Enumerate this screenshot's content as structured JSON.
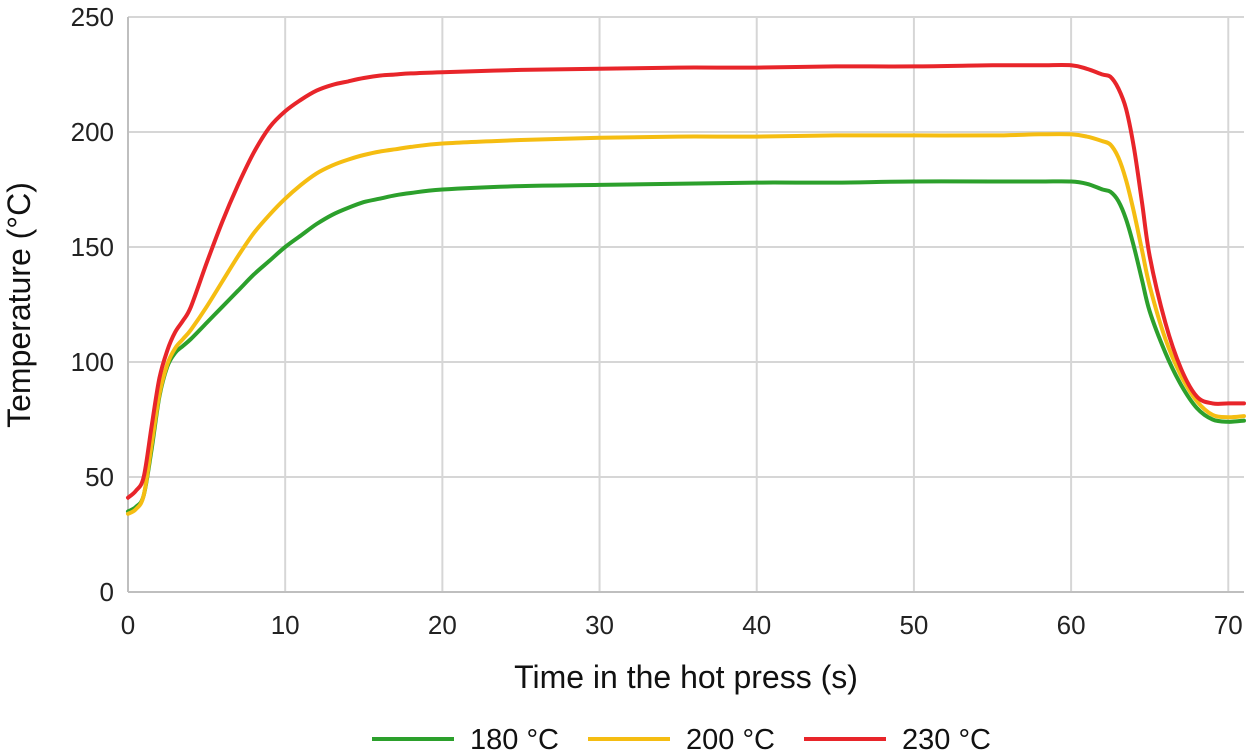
{
  "chart_data": {
    "type": "line",
    "title": "",
    "xlabel": "Time in the hot press (s)",
    "ylabel": "Temperature (°C)",
    "xlim": [
      0,
      71
    ],
    "ylim": [
      0,
      250
    ],
    "x_ticks": [
      0,
      10,
      20,
      30,
      40,
      50,
      60,
      70
    ],
    "y_ticks": [
      0,
      50,
      100,
      150,
      200,
      250
    ],
    "grid": true,
    "legend_position": "bottom",
    "series": [
      {
        "name": "180 °C",
        "color": "#2ca02c",
        "x": [
          0,
          0.5,
          1,
          1.5,
          2,
          2.5,
          3,
          3.5,
          4,
          5,
          6,
          7,
          8,
          9,
          10,
          11,
          12,
          13,
          14,
          15,
          16,
          17,
          18,
          20,
          25,
          30,
          35,
          40,
          45,
          50,
          55,
          58,
          60,
          61,
          62,
          62.5,
          63,
          63.5,
          64,
          64.5,
          65,
          66,
          67,
          68,
          69,
          70,
          71
        ],
        "y": [
          35,
          37,
          42,
          62,
          85,
          98,
          104,
          107,
          110,
          117,
          124,
          131,
          138,
          144,
          150,
          155,
          160,
          164,
          167,
          169.5,
          171,
          172.5,
          173.5,
          175,
          176.5,
          177,
          177.5,
          178,
          178,
          178.5,
          178.5,
          178.5,
          178.5,
          177.5,
          175,
          174,
          170,
          162,
          150,
          136,
          122,
          104,
          90,
          80,
          75,
          74,
          74.5
        ]
      },
      {
        "name": "200 °C",
        "color": "#f5bd12",
        "x": [
          0,
          0.5,
          1,
          1.5,
          2,
          2.5,
          3,
          3.5,
          4,
          5,
          6,
          7,
          8,
          9,
          10,
          11,
          12,
          13,
          14,
          15,
          16,
          17,
          18,
          20,
          25,
          30,
          35,
          40,
          45,
          50,
          55,
          58,
          60,
          61,
          62,
          62.5,
          63,
          63.5,
          64,
          64.5,
          65,
          66,
          67,
          68,
          69,
          70,
          71
        ],
        "y": [
          34,
          36,
          42,
          64,
          86,
          99,
          106,
          110,
          114,
          124,
          135,
          146,
          156,
          164,
          171,
          177,
          182,
          185.5,
          188,
          190,
          191.5,
          192.5,
          193.5,
          195,
          196.5,
          197.5,
          198,
          198,
          198.5,
          198.5,
          198.5,
          199,
          199,
          198,
          196,
          194.5,
          189,
          179,
          165,
          149,
          133,
          110,
          94,
          83,
          77,
          76,
          76.5
        ]
      },
      {
        "name": "230 °C",
        "color": "#e8252a",
        "x": [
          0,
          0.5,
          1,
          1.5,
          2,
          2.5,
          3,
          3.5,
          4,
          5,
          6,
          7,
          8,
          9,
          10,
          11,
          12,
          13,
          14,
          15,
          16,
          17,
          18,
          20,
          25,
          30,
          35,
          40,
          45,
          50,
          55,
          58,
          60,
          61,
          62,
          62.5,
          63,
          63.5,
          64,
          64.5,
          65,
          66,
          67,
          68,
          69,
          70,
          71
        ],
        "y": [
          41,
          44,
          50,
          72,
          93,
          105,
          113,
          118,
          124,
          143,
          161,
          177,
          191,
          202,
          209,
          214,
          218,
          220.5,
          222,
          223.5,
          224.5,
          225,
          225.5,
          226,
          227,
          227.5,
          228,
          228,
          228.5,
          228.5,
          229,
          229,
          229,
          227.5,
          225,
          224,
          219,
          210,
          193,
          170,
          146,
          117,
          97,
          85,
          82,
          82,
          82
        ]
      }
    ]
  }
}
